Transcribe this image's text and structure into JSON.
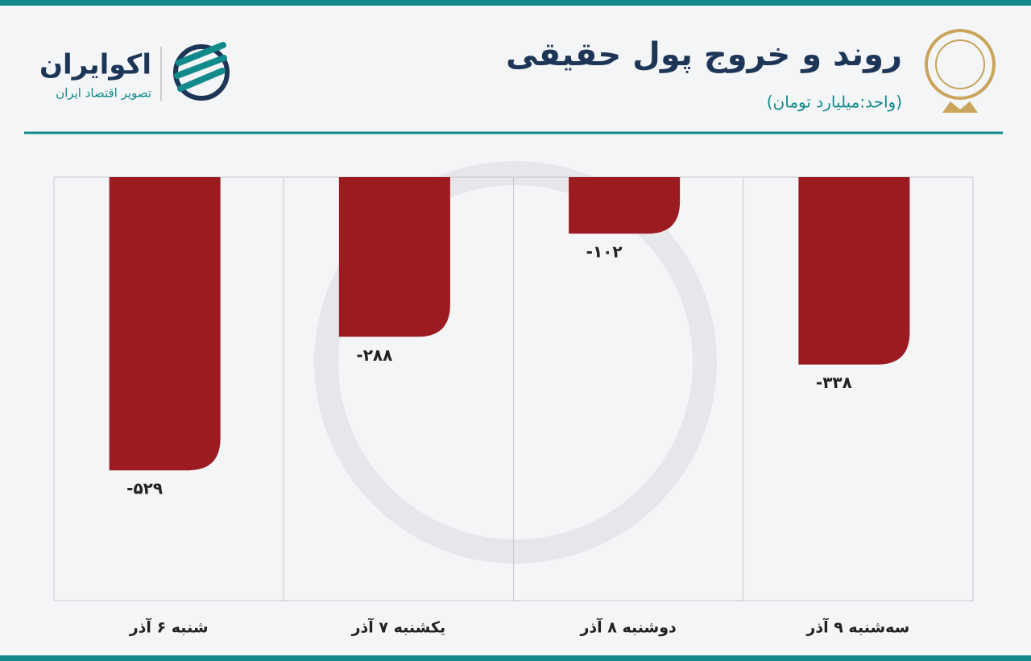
{
  "chart_data": {
    "type": "bar",
    "title": "روند و خروج پول حقیقی",
    "subtitle": "(واحد:میلیارد تومان)",
    "brand": "اکوایران",
    "brand_tagline": "تصویر اقتصاد ایران",
    "categories": [
      "شنبه ۶ آذر",
      "یکشنبه ۷ آذر",
      "دوشنبه ۸ آذر",
      "سه‌شنبه ۹ آذر"
    ],
    "values": [
      -529,
      -288,
      -102,
      -338
    ],
    "value_labels": [
      "-۵۲۹",
      "-۲۸۸",
      "-۱۰۲",
      "-۳۳۸"
    ],
    "color": "#9b1b20",
    "ylim": [
      -764,
      0
    ],
    "grid": true
  }
}
